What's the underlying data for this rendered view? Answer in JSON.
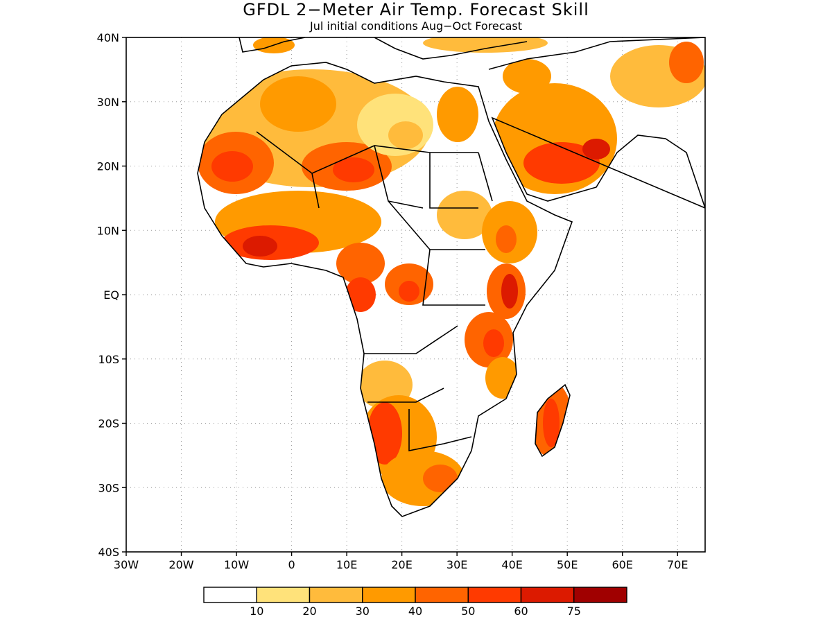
{
  "title": "GFDL 2−Meter Air Temp. Forecast Skill",
  "subtitle": "Jul initial conditions  Aug−Oct Forecast",
  "map": {
    "lon_range": [
      -30,
      75
    ],
    "lat_range": [
      -40,
      40
    ],
    "lat_ticks": [
      {
        "lat": 40,
        "label": "40N"
      },
      {
        "lat": 30,
        "label": "30N"
      },
      {
        "lat": 20,
        "label": "20N"
      },
      {
        "lat": 10,
        "label": "10N"
      },
      {
        "lat": 0,
        "label": "EQ"
      },
      {
        "lat": -10,
        "label": "10S"
      },
      {
        "lat": -20,
        "label": "20S"
      },
      {
        "lat": -30,
        "label": "30S"
      },
      {
        "lat": -40,
        "label": "40S"
      }
    ],
    "lon_ticks": [
      {
        "lon": -30,
        "label": "30W"
      },
      {
        "lon": -20,
        "label": "20W"
      },
      {
        "lon": -10,
        "label": "10W"
      },
      {
        "lon": 0,
        "label": "0"
      },
      {
        "lon": 10,
        "label": "10E"
      },
      {
        "lon": 20,
        "label": "20E"
      },
      {
        "lon": 30,
        "label": "30E"
      },
      {
        "lon": 40,
        "label": "40E"
      },
      {
        "lon": 50,
        "label": "50E"
      },
      {
        "lon": 60,
        "label": "60E"
      },
      {
        "lon": 70,
        "label": "70E"
      }
    ],
    "grid": "dotted"
  },
  "legend": {
    "bins": [
      {
        "color": "#ffffff",
        "label": "10"
      },
      {
        "color": "#ffe27a",
        "label": "20"
      },
      {
        "color": "#ffbb3c",
        "label": "30"
      },
      {
        "color": "#ff9a00",
        "label": "40"
      },
      {
        "color": "#ff6400",
        "label": "50"
      },
      {
        "color": "#ff3a00",
        "label": "60"
      },
      {
        "color": "#dc1a00",
        "label": "75"
      },
      {
        "color": "#a00000",
        "label": ""
      }
    ]
  },
  "colors": {
    "c1": "#ffe27a",
    "c2": "#ffbb3c",
    "c3": "#ff9a00",
    "c4": "#ff6400",
    "c5": "#ff3a00",
    "c6": "#dc1a00",
    "c7": "#a00000"
  }
}
